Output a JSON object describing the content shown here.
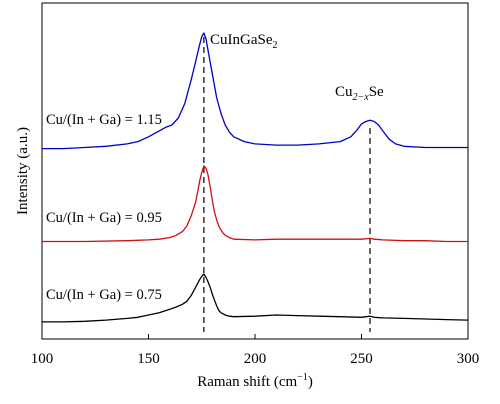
{
  "chart_data": {
    "type": "line",
    "xlabel": "Raman shift (cm",
    "xlabel_sup": "−1",
    "xlabel_close": ")",
    "ylabel": "Intensity (a.u.)",
    "xlim": [
      100,
      300
    ],
    "x_ticks": [
      "100",
      "150",
      "200",
      "250",
      "300"
    ],
    "grid": false,
    "legend": "inline labels left of curves",
    "reference_lines": [
      {
        "x": 176,
        "label_main": "CuInGaSe",
        "label_sub": "2",
        "style": "dashed"
      },
      {
        "x": 254,
        "label_main": "Cu",
        "label_sub": "2−x",
        "label_end": "Se",
        "style": "dashed"
      }
    ],
    "series": [
      {
        "name": "Cu/(In + Ga) = 1.15",
        "color": "#0000cc",
        "x": [
          100,
          110,
          120,
          130,
          140,
          145,
          150,
          155,
          158,
          161,
          164,
          167,
          170,
          172,
          174,
          175,
          176,
          177,
          178,
          180,
          182,
          184,
          186,
          188,
          190,
          195,
          200,
          210,
          220,
          230,
          240,
          245,
          248,
          250,
          252,
          254,
          256,
          258,
          260,
          263,
          266,
          270,
          280,
          290,
          300
        ],
        "y": [
          0.02,
          0.02,
          0.03,
          0.04,
          0.06,
          0.08,
          0.12,
          0.17,
          0.2,
          0.22,
          0.28,
          0.4,
          0.6,
          0.75,
          0.9,
          0.97,
          1.0,
          0.95,
          0.85,
          0.65,
          0.45,
          0.32,
          0.22,
          0.16,
          0.12,
          0.08,
          0.06,
          0.05,
          0.05,
          0.06,
          0.08,
          0.12,
          0.18,
          0.23,
          0.25,
          0.26,
          0.25,
          0.22,
          0.17,
          0.1,
          0.06,
          0.04,
          0.03,
          0.03,
          0.03
        ]
      },
      {
        "name": "Cu/(In + Ga) = 0.95",
        "color": "#cc1111",
        "x": [
          100,
          120,
          140,
          150,
          155,
          160,
          163,
          166,
          168,
          170,
          172,
          173,
          174,
          175,
          176,
          177,
          178,
          179,
          180,
          181,
          182,
          183,
          184,
          185,
          186,
          188,
          190,
          200,
          210,
          220,
          230,
          240,
          250,
          254,
          256,
          260,
          270,
          280,
          290,
          300
        ],
        "y": [
          0.02,
          0.02,
          0.03,
          0.04,
          0.05,
          0.07,
          0.1,
          0.15,
          0.22,
          0.35,
          0.52,
          0.65,
          0.8,
          0.92,
          1.0,
          0.97,
          0.88,
          0.72,
          0.55,
          0.4,
          0.3,
          0.22,
          0.17,
          0.13,
          0.1,
          0.07,
          0.05,
          0.04,
          0.05,
          0.05,
          0.05,
          0.05,
          0.05,
          0.06,
          0.05,
          0.04,
          0.03,
          0.03,
          0.02,
          0.02
        ]
      },
      {
        "name": "Cu/(In + Ga) = 0.75",
        "color": "#000000",
        "x": [
          100,
          110,
          120,
          130,
          140,
          145,
          150,
          155,
          160,
          163,
          166,
          168,
          170,
          172,
          174,
          175,
          176,
          177,
          178,
          179,
          180,
          181,
          182,
          183,
          184,
          186,
          188,
          190,
          200,
          210,
          220,
          230,
          240,
          250,
          254,
          256,
          260,
          270,
          280,
          290,
          300
        ],
        "y": [
          0.02,
          0.02,
          0.03,
          0.05,
          0.08,
          0.1,
          0.14,
          0.18,
          0.24,
          0.28,
          0.33,
          0.38,
          0.48,
          0.62,
          0.76,
          0.82,
          0.86,
          0.8,
          0.72,
          0.62,
          0.5,
          0.4,
          0.3,
          0.22,
          0.18,
          0.14,
          0.12,
          0.11,
          0.12,
          0.14,
          0.13,
          0.12,
          0.11,
          0.1,
          0.12,
          0.1,
          0.09,
          0.08,
          0.07,
          0.06,
          0.05
        ]
      }
    ]
  }
}
